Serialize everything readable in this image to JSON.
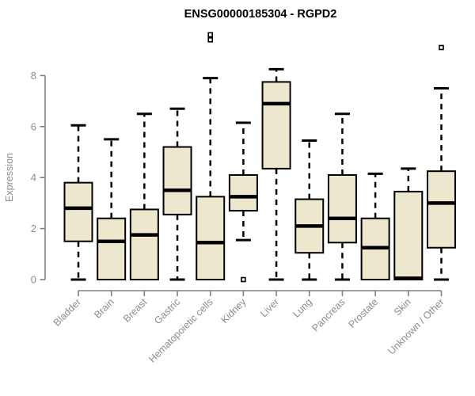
{
  "header": {
    "title": "ENSG00000185304 - RGPD2"
  },
  "colors": {
    "background": "#ffffff",
    "box_fill": "#ede7cd",
    "box_border": "#000000",
    "median": "#000000",
    "whisker": "#000000",
    "outlier_fill": "#ffffff",
    "outlier_border": "#000000",
    "axis": "#808080",
    "tick_label": "#8c8c8c",
    "title": "#000000"
  },
  "chart_data": {
    "type": "boxplot",
    "title": "ENSG00000185304 - RGPD2",
    "ylabel": "Expression",
    "xlabel": "",
    "grid": false,
    "legend": "none",
    "yticks": [
      0,
      2,
      4,
      6,
      8
    ],
    "ylim": [
      0,
      9.8
    ],
    "categories": [
      "Bladder",
      "Brain",
      "Breast",
      "Gastric",
      "Hematopoietic cells",
      "Kidney",
      "Liver",
      "Lung",
      "Pancreas",
      "Prostate",
      "Skin",
      "Unknown / Other"
    ],
    "series": [
      {
        "category": "Bladder",
        "whisker_low": 0,
        "q1": 1.5,
        "median": 2.8,
        "q3": 3.8,
        "whisker_high": 6.05,
        "outliers": []
      },
      {
        "category": "Brain",
        "whisker_low": 0,
        "q1": 0,
        "median": 1.5,
        "q3": 2.4,
        "whisker_high": 5.5,
        "outliers": []
      },
      {
        "category": "Breast",
        "whisker_low": 0,
        "q1": 0,
        "median": 1.75,
        "q3": 2.75,
        "whisker_high": 6.5,
        "outliers": []
      },
      {
        "category": "Gastric",
        "whisker_low": 0,
        "q1": 2.55,
        "median": 3.5,
        "q3": 5.2,
        "whisker_high": 6.7,
        "outliers": []
      },
      {
        "category": "Hematopoietic cells",
        "whisker_low": 0,
        "q1": 0,
        "median": 1.45,
        "q3": 3.25,
        "whisker_high": 7.9,
        "outliers": [
          9.4,
          9.6
        ]
      },
      {
        "category": "Kidney",
        "whisker_low": 1.55,
        "q1": 2.7,
        "median": 3.25,
        "q3": 4.1,
        "whisker_high": 6.15,
        "outliers": [
          0
        ]
      },
      {
        "category": "Liver",
        "whisker_low": 0,
        "q1": 4.35,
        "median": 6.9,
        "q3": 7.75,
        "whisker_high": 8.25,
        "outliers": []
      },
      {
        "category": "Lung",
        "whisker_low": 0,
        "q1": 1.05,
        "median": 2.1,
        "q3": 3.15,
        "whisker_high": 5.45,
        "outliers": []
      },
      {
        "category": "Pancreas",
        "whisker_low": 0,
        "q1": 1.45,
        "median": 2.4,
        "q3": 4.1,
        "whisker_high": 6.5,
        "outliers": []
      },
      {
        "category": "Prostate",
        "whisker_low": 0,
        "q1": 0,
        "median": 1.25,
        "q3": 2.4,
        "whisker_high": 4.15,
        "outliers": []
      },
      {
        "category": "Skin",
        "whisker_low": 0,
        "q1": 0,
        "median": 0.05,
        "q3": 3.45,
        "whisker_high": 4.35,
        "outliers": []
      },
      {
        "category": "Unknown / Other",
        "whisker_low": 0,
        "q1": 1.25,
        "median": 3.0,
        "q3": 4.25,
        "whisker_high": 7.5,
        "outliers": [
          9.1
        ]
      }
    ]
  }
}
